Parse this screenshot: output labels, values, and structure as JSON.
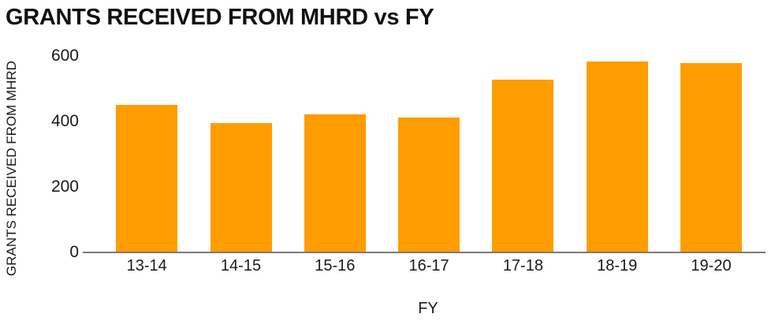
{
  "chart": {
    "title": "GRANTS RECEIVED FROM MHRD vs FY",
    "x_axis_title": "FY",
    "y_axis_title": "GRANTS RECEIVED FROM MHRD"
  },
  "chart_data": {
    "type": "bar",
    "categories": [
      "13-14",
      "14-15",
      "15-16",
      "16-17",
      "17-18",
      "18-19",
      "19-20"
    ],
    "values": [
      450,
      395,
      422,
      411,
      527,
      583,
      579
    ],
    "title": "GRANTS RECEIVED FROM MHRD vs FY",
    "xlabel": "FY",
    "ylabel": "GRANTS RECEIVED FROM MHRD",
    "ylim": [
      0,
      600
    ],
    "yticks": [
      0,
      200,
      400,
      600
    ],
    "grid": false,
    "legend": false,
    "bar_color": "#FF9D00",
    "axis_color": "#7a7a7a",
    "text_color": "#1a1a1a",
    "background_color": "#ffffff"
  }
}
